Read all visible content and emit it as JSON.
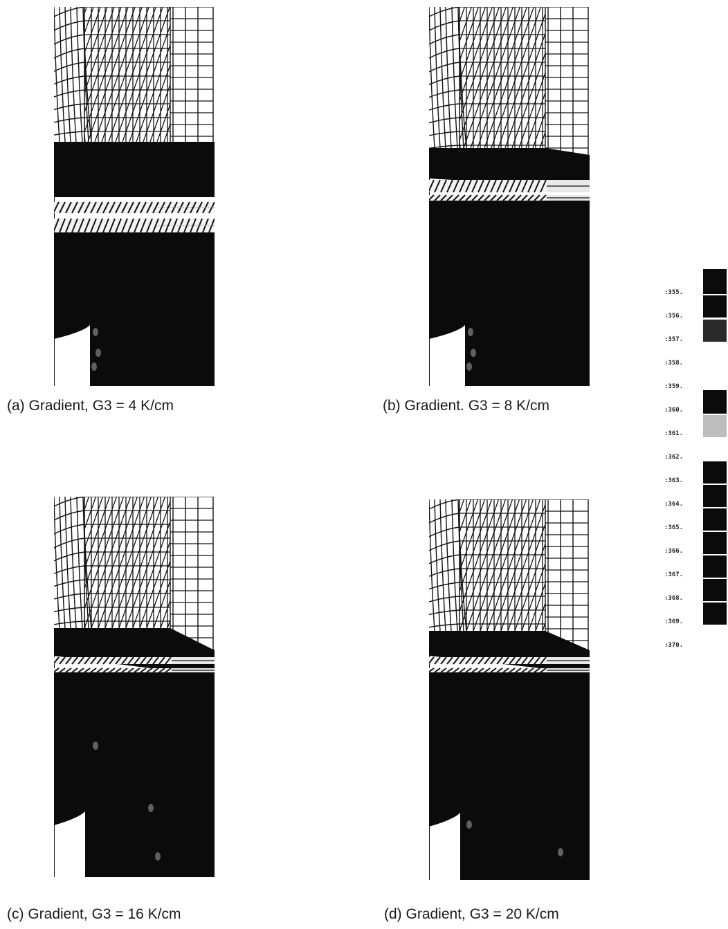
{
  "panels": [
    {
      "id": "a",
      "caption": "(a) Gradient, G3 = 4 K/cm"
    },
    {
      "id": "b",
      "caption": "(b) Gradient. G3 = 8 K/cm"
    },
    {
      "id": "c",
      "caption": "(c) Gradient, G3 = 16 K/cm"
    },
    {
      "id": "d",
      "caption": "(d) Gradient, G3 = 20 K/cm"
    }
  ],
  "legend": {
    "labels": [
      ":355.",
      ":356.",
      ":357.",
      ":358.",
      ":359.",
      ":360.",
      ":361.",
      ":362.",
      ":363.",
      ":364.",
      ":365.",
      ":366.",
      ":367.",
      ":368.",
      ":369.",
      ":370."
    ]
  },
  "colors": {
    "fill": "#0b0b0b",
    "line": "#111111",
    "background": "#ffffff"
  }
}
